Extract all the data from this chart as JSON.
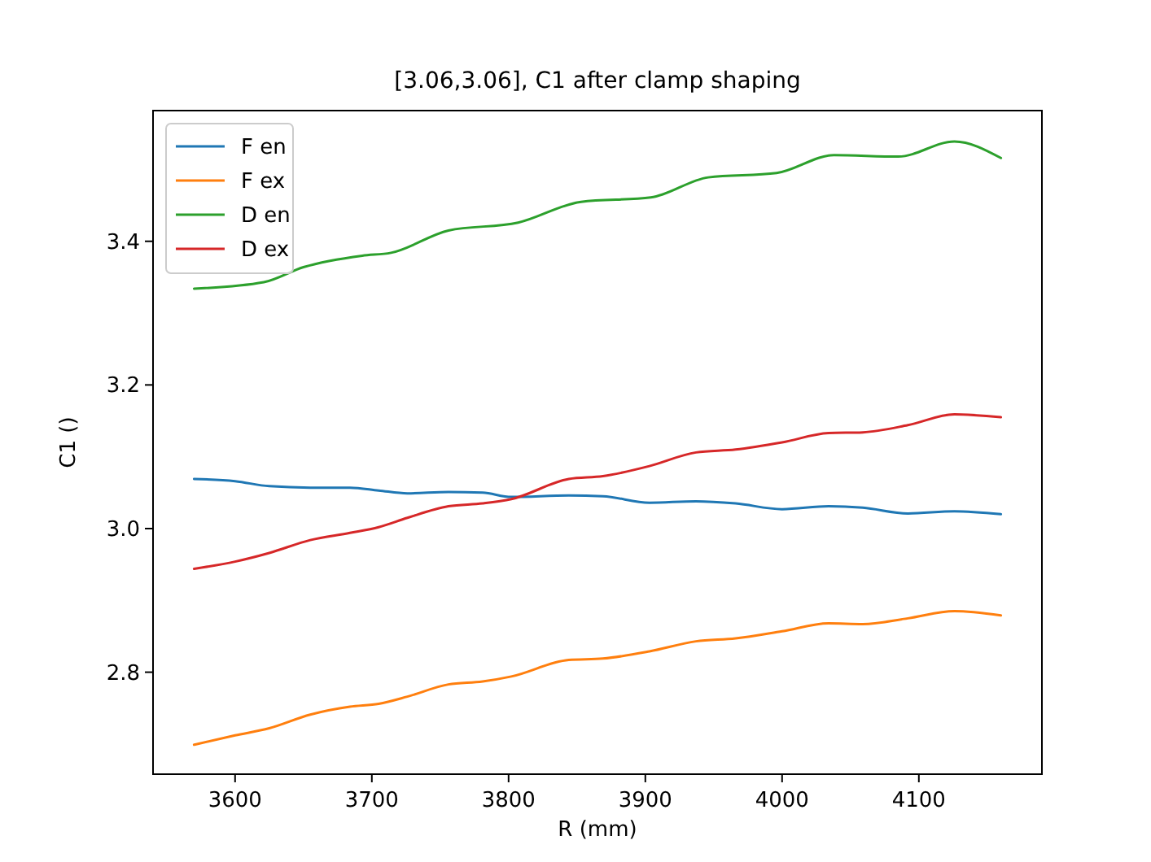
{
  "chart_data": {
    "type": "line",
    "title": "[3.06,3.06], C1 after clamp shaping",
    "xlabel": "R (mm)",
    "ylabel": "C1 ()",
    "x": [
      3570,
      3600,
      3625,
      3655,
      3684,
      3705,
      3726,
      3756,
      3781,
      3802,
      3844,
      3869,
      3903,
      3937,
      3966,
      4000,
      4034,
      4059,
      4092,
      4126,
      4160
    ],
    "series": [
      {
        "name": "F en",
        "color": "#1f77b4",
        "values": [
          3.069,
          3.066,
          3.059,
          3.057,
          3.057,
          3.053,
          3.049,
          3.051,
          3.05,
          3.044,
          3.046,
          3.045,
          3.036,
          3.038,
          3.035,
          3.027,
          3.031,
          3.029,
          3.021,
          3.024,
          3.02
        ]
      },
      {
        "name": "F ex",
        "color": "#ff7f0e",
        "values": [
          2.699,
          2.712,
          2.722,
          2.741,
          2.752,
          2.756,
          2.766,
          2.783,
          2.787,
          2.794,
          2.817,
          2.819,
          2.829,
          2.843,
          2.847,
          2.857,
          2.868,
          2.867,
          2.875,
          2.885,
          2.879
        ]
      },
      {
        "name": "D en",
        "color": "#2ca02c",
        "x": [
          3570,
          3621,
          3650,
          3693,
          3714,
          3756,
          3807,
          3853,
          3904,
          3946,
          3996,
          4038,
          4085,
          4126,
          4160
        ],
        "values": [
          3.334,
          3.343,
          3.364,
          3.38,
          3.384,
          3.415,
          3.426,
          3.455,
          3.461,
          3.489,
          3.495,
          3.52,
          3.518,
          3.539,
          3.516
        ]
      },
      {
        "name": "D ex",
        "color": "#d62728",
        "values": [
          2.944,
          2.954,
          2.966,
          2.984,
          2.994,
          3.002,
          3.015,
          3.031,
          3.035,
          3.041,
          3.069,
          3.073,
          3.087,
          3.106,
          3.11,
          3.12,
          3.133,
          3.134,
          3.144,
          3.159,
          3.155
        ]
      }
    ],
    "xlim": [
      3540,
      4190
    ],
    "ylim": [
      2.658,
      3.582
    ],
    "xticks": [
      3600,
      3700,
      3800,
      3900,
      4000,
      4100
    ],
    "yticks": [
      2.8,
      {
        "value": 3.0,
        "label": "3.0"
      },
      3.2,
      3.4
    ],
    "legend": "top left",
    "grid": false,
    "marker": "none",
    "line_style": "solid"
  }
}
